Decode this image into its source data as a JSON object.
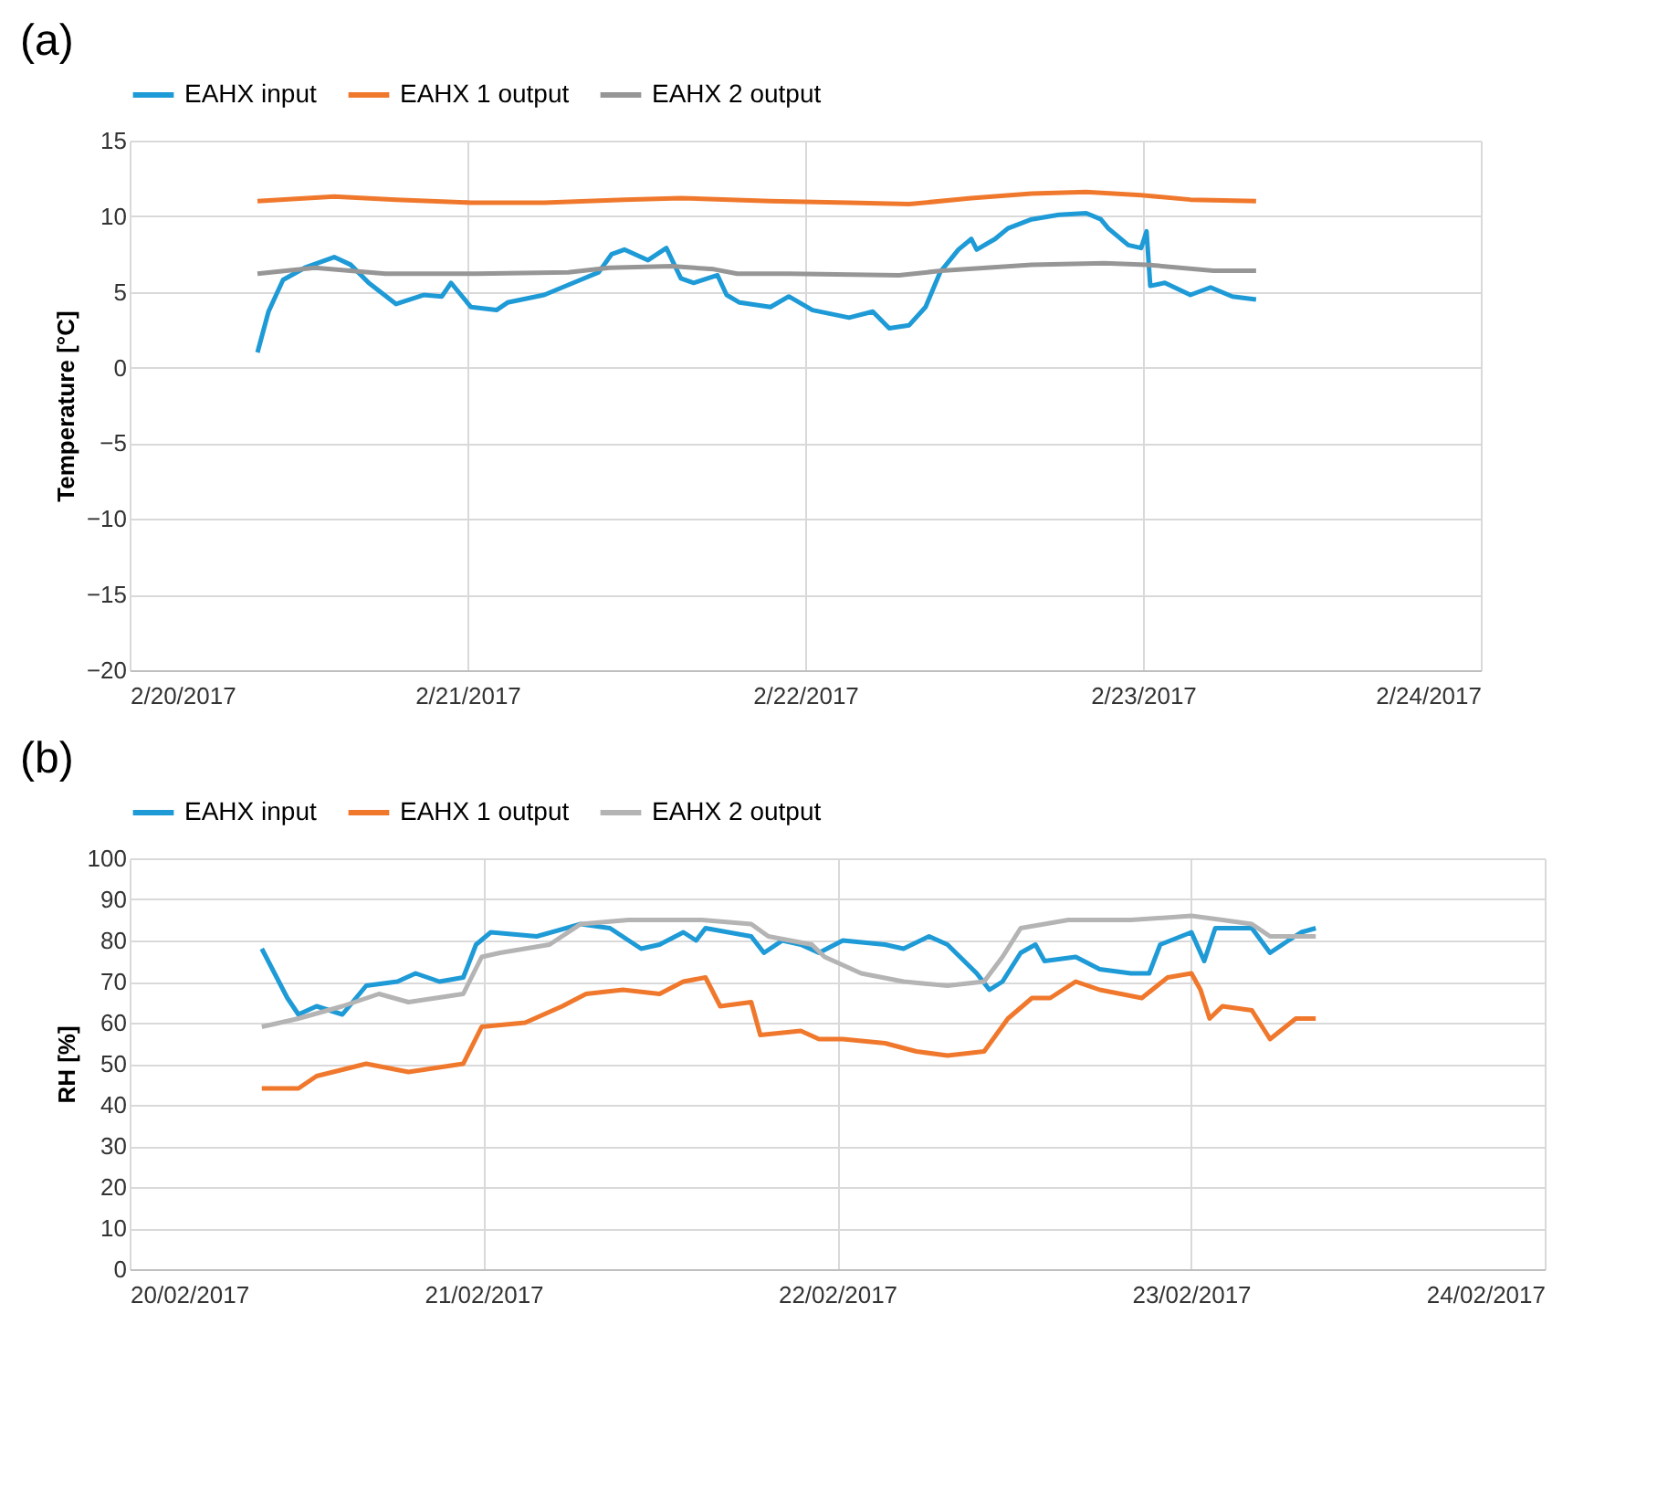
{
  "chart_data": [
    {
      "type": "line",
      "title": "(a)",
      "ylabel": "Temperature [°C]",
      "legend": "top",
      "grid": true,
      "xlim": [
        "2017-02-20T00:00",
        "2017-02-24T00:00"
      ],
      "xticks": [
        {
          "value": "2017-02-20T00:00",
          "label": "2/20/2017"
        },
        {
          "value": "2017-02-21T00:00",
          "label": "2/21/2017"
        },
        {
          "value": "2017-02-22T00:00",
          "label": "2/22/2017"
        },
        {
          "value": "2017-02-23T00:00",
          "label": "2/23/2017"
        },
        {
          "value": "2017-02-24T00:00",
          "label": "2/24/2017"
        }
      ],
      "ylim": [
        -20,
        15
      ],
      "yticks": [
        -20,
        -15,
        -10,
        -5,
        0,
        5,
        10,
        15
      ],
      "series": [
        {
          "name": "EAHX input",
          "color": "#1e9ad6",
          "x": [
            "2017-02-20T09:05",
            "2017-02-20T09:52",
            "2017-02-20T10:54",
            "2017-02-20T12:27",
            "2017-02-20T14:32",
            "2017-02-20T15:42",
            "2017-02-20T16:59",
            "2017-02-20T18:56",
            "2017-02-20T20:53",
            "2017-02-20T22:11",
            "2017-02-20T22:50",
            "2017-02-21T00:15",
            "2017-02-21T02:04",
            "2017-02-21T02:51",
            "2017-02-21T05:27",
            "2017-02-21T08:02",
            "2017-02-21T09:20",
            "2017-02-21T10:15",
            "2017-02-21T11:09",
            "2017-02-21T12:50",
            "2017-02-21T14:08",
            "2017-02-21T15:10",
            "2017-02-21T16:05",
            "2017-02-21T17:46",
            "2017-02-21T18:25",
            "2017-02-21T19:20",
            "2017-02-21T21:32",
            "2017-02-21T22:50",
            "2017-02-22T00:31",
            "2017-02-22T03:07",
            "2017-02-22T04:48",
            "2017-02-22T05:58",
            "2017-02-22T07:23",
            "2017-02-22T08:33",
            "2017-02-22T09:35",
            "2017-02-22T10:53",
            "2017-02-22T11:48",
            "2017-02-22T12:11",
            "2017-02-22T13:29",
            "2017-02-22T14:24",
            "2017-02-22T16:05",
            "2017-02-22T18:01",
            "2017-02-22T19:58",
            "2017-02-22T21:00",
            "2017-02-22T21:32",
            "2017-02-22T22:57",
            "2017-02-22T23:52",
            "2017-02-23T00:15",
            "2017-02-23T00:31",
            "2017-02-23T01:33",
            "2017-02-23T03:22",
            "2017-02-23T04:48",
            "2017-02-23T06:21",
            "2017-02-23T08:02"
          ],
          "values": [
            1.0,
            3.7,
            5.8,
            6.6,
            7.3,
            6.8,
            5.6,
            4.2,
            4.8,
            4.7,
            5.6,
            4.0,
            3.8,
            4.3,
            4.8,
            5.8,
            6.3,
            7.5,
            7.8,
            7.1,
            7.9,
            5.9,
            5.6,
            6.1,
            4.8,
            4.3,
            4.0,
            4.7,
            3.8,
            3.3,
            3.7,
            2.6,
            2.8,
            4.0,
            6.3,
            7.8,
            8.5,
            7.8,
            8.5,
            9.2,
            9.8,
            10.1,
            10.2,
            9.8,
            9.2,
            8.1,
            7.9,
            9.0,
            5.4,
            5.6,
            4.8,
            5.3,
            4.7,
            4.5
          ]
        },
        {
          "name": "EAHX 1 output",
          "color": "#f0782d",
          "x": [
            "2017-02-20T09:05",
            "2017-02-20T14:32",
            "2017-02-20T18:56",
            "2017-02-21T00:15",
            "2017-02-21T05:27",
            "2017-02-21T11:09",
            "2017-02-21T15:10",
            "2017-02-21T21:32",
            "2017-02-22T03:07",
            "2017-02-22T07:23",
            "2017-02-22T11:48",
            "2017-02-22T16:05",
            "2017-02-22T19:58",
            "2017-02-22T23:52",
            "2017-02-23T03:22",
            "2017-02-23T08:02"
          ],
          "values": [
            11.0,
            11.3,
            11.1,
            10.9,
            10.9,
            11.1,
            11.2,
            11.0,
            10.9,
            10.8,
            11.2,
            11.5,
            11.6,
            11.4,
            11.1,
            11.0
          ]
        },
        {
          "name": "EAHX 2 output",
          "color": "#969696",
          "x": [
            "2017-02-20T09:05",
            "2017-02-20T13:10",
            "2017-02-20T18:10",
            "2017-02-21T00:40",
            "2017-02-21T07:10",
            "2017-02-21T10:05",
            "2017-02-21T14:30",
            "2017-02-21T17:30",
            "2017-02-21T19:10",
            "2017-02-21T22:50",
            "2017-02-22T06:40",
            "2017-02-22T09:40",
            "2017-02-22T16:05",
            "2017-02-22T21:15",
            "2017-02-23T00:15",
            "2017-02-23T05:00",
            "2017-02-23T08:02"
          ],
          "values": [
            6.2,
            6.6,
            6.2,
            6.2,
            6.3,
            6.6,
            6.7,
            6.5,
            6.2,
            6.2,
            6.1,
            6.4,
            6.8,
            6.9,
            6.8,
            6.4,
            6.4
          ]
        }
      ]
    },
    {
      "type": "line",
      "title": "(b)",
      "ylabel": "RH [%]",
      "legend": "top",
      "grid": true,
      "xlim": [
        "2017-02-20T00:00",
        "2017-02-24T00:00"
      ],
      "xticks": [
        {
          "value": "2017-02-20T00:00",
          "label": "20/02/2017"
        },
        {
          "value": "2017-02-21T00:00",
          "label": "21/02/2017"
        },
        {
          "value": "2017-02-22T00:00",
          "label": "22/02/2017"
        },
        {
          "value": "2017-02-23T00:00",
          "label": "23/02/2017"
        },
        {
          "value": "2017-02-24T00:00",
          "label": "24/02/2017"
        }
      ],
      "ylim": [
        0,
        100
      ],
      "yticks": [
        0,
        10,
        20,
        30,
        40,
        50,
        60,
        70,
        80,
        90,
        100
      ],
      "series": [
        {
          "name": "EAHX input",
          "color": "#1e9ad6",
          "x": [
            "2017-02-20T08:58",
            "2017-02-20T10:42",
            "2017-02-20T11:27",
            "2017-02-20T12:41",
            "2017-02-20T14:26",
            "2017-02-20T16:03",
            "2017-02-20T18:10",
            "2017-02-20T19:24",
            "2017-02-20T21:01",
            "2017-02-20T22:38",
            "2017-02-20T23:30",
            "2017-02-21T00:30",
            "2017-02-21T03:37",
            "2017-02-21T06:36",
            "2017-02-21T08:35",
            "2017-02-21T10:42",
            "2017-02-21T11:57",
            "2017-02-21T13:34",
            "2017-02-21T14:26",
            "2017-02-21T15:04",
            "2017-02-21T18:10",
            "2017-02-21T19:02",
            "2017-02-21T20:17",
            "2017-02-21T21:32",
            "2017-02-21T22:46",
            "2017-02-22T00:23",
            "2017-02-22T03:15",
            "2017-02-22T04:30",
            "2017-02-22T06:14",
            "2017-02-22T07:29",
            "2017-02-22T09:28",
            "2017-02-22T10:20",
            "2017-02-22T11:13",
            "2017-02-22T12:27",
            "2017-02-22T13:27",
            "2017-02-22T14:04",
            "2017-02-22T16:11",
            "2017-02-22T17:49",
            "2017-02-22T19:56",
            "2017-02-22T21:10",
            "2017-02-22T21:55",
            "2017-02-23T00:02",
            "2017-02-23T00:54",
            "2017-02-23T01:39",
            "2017-02-23T04:08",
            "2017-02-23T05:22",
            "2017-02-23T06:37",
            "2017-02-23T07:29",
            "2017-02-23T08:28"
          ],
          "values": [
            78,
            66,
            62,
            64,
            62,
            69,
            70,
            72,
            70,
            71,
            79,
            82,
            81,
            84,
            83,
            78,
            79,
            82,
            80,
            83,
            81,
            77,
            80,
            79,
            77,
            80,
            79,
            78,
            81,
            79,
            72,
            68,
            70,
            77,
            79,
            75,
            76,
            73,
            72,
            72,
            79,
            82,
            75,
            83,
            83,
            77,
            80,
            82,
            83
          ]
        },
        {
          "name": "EAHX 1 output",
          "color": "#f0782d",
          "x": [
            "2017-02-20T08:58",
            "2017-02-20T11:27",
            "2017-02-20T12:41",
            "2017-02-20T16:03",
            "2017-02-20T18:55",
            "2017-02-20T22:38",
            "2017-02-20T23:53",
            "2017-02-21T02:50",
            "2017-02-21T05:21",
            "2017-02-21T06:58",
            "2017-02-21T09:28",
            "2017-02-21T11:57",
            "2017-02-21T13:34",
            "2017-02-21T15:04",
            "2017-02-21T16:04",
            "2017-02-21T18:10",
            "2017-02-21T18:47",
            "2017-02-21T21:32",
            "2017-02-21T22:46",
            "2017-02-22T00:23",
            "2017-02-22T03:15",
            "2017-02-22T05:22",
            "2017-02-22T07:29",
            "2017-02-22T09:58",
            "2017-02-22T11:35",
            "2017-02-22T13:13",
            "2017-02-22T14:27",
            "2017-02-22T16:11",
            "2017-02-22T17:49",
            "2017-02-22T20:40",
            "2017-02-22T22:25",
            "2017-02-23T00:02",
            "2017-02-23T00:39",
            "2017-02-23T01:16",
            "2017-02-23T02:08",
            "2017-02-23T04:08",
            "2017-02-23T05:22",
            "2017-02-23T07:07",
            "2017-02-23T08:28"
          ],
          "values": [
            44,
            44,
            47,
            50,
            48,
            50,
            59,
            60,
            64,
            67,
            68,
            67,
            70,
            71,
            64,
            65,
            57,
            58,
            56,
            56,
            55,
            53,
            52,
            53,
            61,
            66,
            66,
            70,
            68,
            66,
            71,
            72,
            68,
            61,
            64,
            63,
            56,
            61,
            61
          ]
        },
        {
          "name": "EAHX 2 output",
          "color": "#b4b4b4",
          "x": [
            "2017-02-20T08:58",
            "2017-02-20T11:27",
            "2017-02-20T14:26",
            "2017-02-20T16:55",
            "2017-02-20T18:55",
            "2017-02-20T22:38",
            "2017-02-20T23:53",
            "2017-02-21T01:08",
            "2017-02-21T04:29",
            "2017-02-21T06:36",
            "2017-02-21T09:50",
            "2017-02-21T14:49",
            "2017-02-21T18:10",
            "2017-02-21T19:20",
            "2017-02-21T22:17",
            "2017-02-21T23:09",
            "2017-02-22T01:38",
            "2017-02-22T04:30",
            "2017-02-22T07:29",
            "2017-02-22T09:58",
            "2017-02-22T11:13",
            "2017-02-22T12:27",
            "2017-02-22T15:41",
            "2017-02-22T19:56",
            "2017-02-23T00:02",
            "2017-02-23T02:08",
            "2017-02-23T04:08",
            "2017-02-23T05:22",
            "2017-02-23T08:28"
          ],
          "values": [
            59,
            61,
            64,
            67,
            65,
            67,
            76,
            77,
            79,
            84,
            85,
            85,
            84,
            81,
            79,
            76,
            72,
            70,
            69,
            70,
            76,
            83,
            85,
            85,
            86,
            85,
            84,
            81,
            81
          ]
        }
      ]
    }
  ]
}
